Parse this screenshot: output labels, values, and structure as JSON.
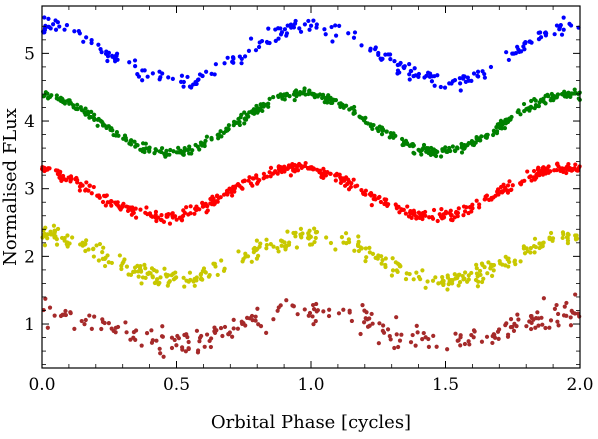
{
  "chart_data": {
    "type": "scatter",
    "xlabel": "Orbital Phase [cycles]",
    "ylabel": "Normalised FLux",
    "xlim": [
      0.0,
      2.0
    ],
    "ylim": [
      0.35,
      5.7
    ],
    "x_ticks": [
      0.0,
      0.5,
      1.0,
      1.5,
      2.0
    ],
    "x_tick_labels": [
      "0.0",
      "0.5",
      "1.0",
      "1.5",
      "2.0"
    ],
    "y_ticks": [
      1,
      2,
      3,
      4,
      5
    ],
    "y_tick_labels": [
      "1",
      "2",
      "3",
      "4",
      "5"
    ],
    "grid": false,
    "series": [
      {
        "color": "#0000ff",
        "base": 5.0,
        "amplitude": 0.42,
        "min_phase": 0.5,
        "scatter": 0.09,
        "points": 240
      },
      {
        "color": "#008000",
        "base": 3.97,
        "amplitude": 0.43,
        "min_phase": 0.47,
        "scatter": 0.05,
        "points": 480
      },
      {
        "color": "#ff0000",
        "base": 2.95,
        "amplitude": 0.36,
        "min_phase": 0.45,
        "scatter": 0.06,
        "points": 480
      },
      {
        "color": "#c8c800",
        "base": 1.98,
        "amplitude": 0.33,
        "min_phase": 0.5,
        "scatter": 0.1,
        "points": 360
      },
      {
        "color": "#a52a2a",
        "base": 0.97,
        "amplitude": 0.23,
        "min_phase": 0.5,
        "scatter": 0.14,
        "points": 240
      }
    ]
  }
}
